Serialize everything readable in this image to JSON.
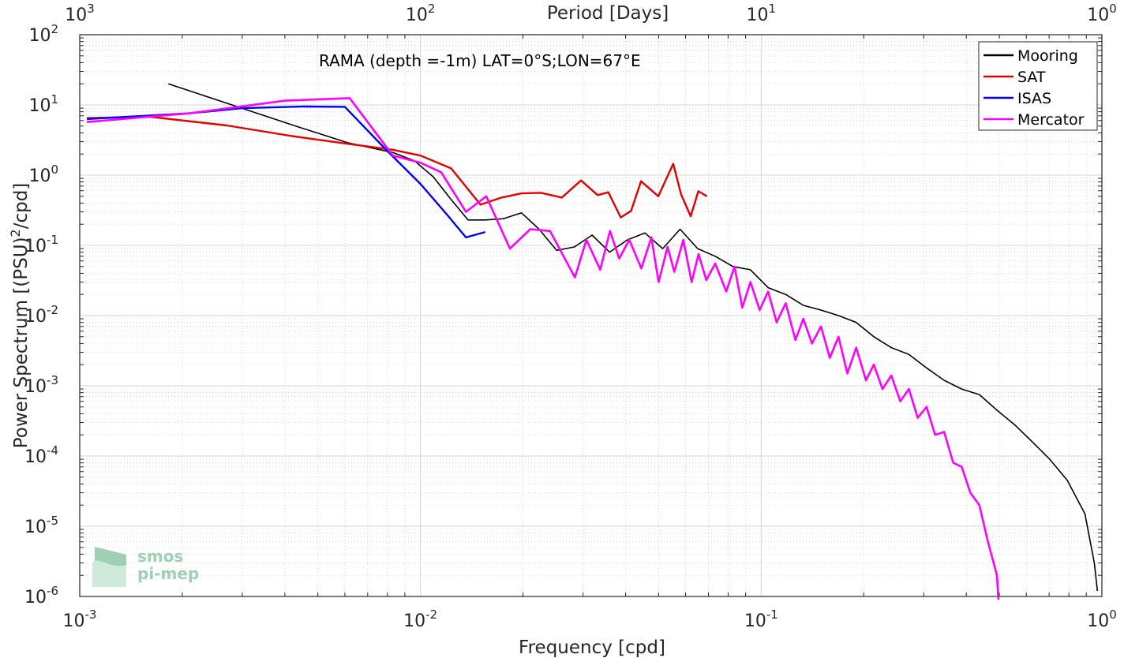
{
  "chart_data": {
    "type": "line",
    "title": "",
    "annotation": "RAMA (depth =-1m) LAT=0°S;LON=67°E",
    "xlabel": "Frequency [cpd]",
    "ylabel": "Power Spectrum [(PSU)",
    "ylabel_sup": "2",
    "ylabel_tail": "/cpd]",
    "top_xlabel": "Period [Days]",
    "x_scale": "log",
    "y_scale": "log",
    "xlim": [
      0.001,
      1
    ],
    "ylim": [
      1e-06,
      100
    ],
    "grid": true,
    "minor_grid": true,
    "legend_position": "top-right",
    "x_ticks": [
      {
        "base": "10",
        "exp": "-3",
        "value": 0.001
      },
      {
        "base": "10",
        "exp": "-2",
        "value": 0.01
      },
      {
        "base": "10",
        "exp": "-1",
        "value": 0.1
      },
      {
        "base": "10",
        "exp": "0",
        "value": 1
      }
    ],
    "top_ticks": [
      {
        "base": "10",
        "exp": "3",
        "value": 1000
      },
      {
        "base": "10",
        "exp": "2",
        "value": 100
      },
      {
        "base": "10",
        "exp": "1",
        "value": 10
      },
      {
        "base": "10",
        "exp": "0",
        "value": 1
      }
    ],
    "y_ticks": [
      {
        "base": "10",
        "exp": "2",
        "value": 100
      },
      {
        "base": "10",
        "exp": "1",
        "value": 10
      },
      {
        "base": "10",
        "exp": "0",
        "value": 1
      },
      {
        "base": "10",
        "exp": "-1",
        "value": 0.1
      },
      {
        "base": "10",
        "exp": "-2",
        "value": 0.01
      },
      {
        "base": "10",
        "exp": "-3",
        "value": 0.001
      },
      {
        "base": "10",
        "exp": "-4",
        "value": 0.0001
      },
      {
        "base": "10",
        "exp": "-5",
        "value": 1e-05
      },
      {
        "base": "10",
        "exp": "-6",
        "value": 1e-06
      }
    ],
    "series": [
      {
        "name": "Mooring",
        "color": "#000000",
        "x": [
          0.00182,
          0.0042,
          0.0061,
          0.0083,
          0.0096,
          0.0109,
          0.0123,
          0.0138,
          0.0155,
          0.0175,
          0.0198,
          0.0223,
          0.0251,
          0.0283,
          0.0319,
          0.0359,
          0.0405,
          0.0456,
          0.0514,
          0.0578,
          0.0651,
          0.0733,
          0.0826,
          0.093,
          0.1048,
          0.118,
          0.1329,
          0.1497,
          0.1686,
          0.19,
          0.214,
          0.241,
          0.2714,
          0.3057,
          0.3443,
          0.3878,
          0.4368,
          0.492,
          0.5541,
          0.6241,
          0.7029,
          0.7917,
          0.8917,
          0.95,
          0.97
        ],
        "y": [
          20,
          5.2,
          2.9,
          2.1,
          1.6,
          0.95,
          0.45,
          0.23,
          0.23,
          0.24,
          0.29,
          0.17,
          0.085,
          0.095,
          0.14,
          0.08,
          0.12,
          0.15,
          0.09,
          0.17,
          0.09,
          0.07,
          0.05,
          0.045,
          0.025,
          0.02,
          0.014,
          0.012,
          0.01,
          0.008,
          0.005,
          0.0035,
          0.0028,
          0.0018,
          0.0012,
          0.0009,
          0.00075,
          0.00045,
          0.00028,
          0.00016,
          9e-05,
          4.5e-05,
          1.5e-05,
          3e-06,
          1.2e-06
        ]
      },
      {
        "name": "SAT",
        "color": "#e00000",
        "x": [
          0.00105,
          0.0016,
          0.0027,
          0.0042,
          0.0061,
          0.0083,
          0.01,
          0.0123,
          0.015,
          0.0173,
          0.0198,
          0.0226,
          0.026,
          0.0296,
          0.0331,
          0.0356,
          0.0387,
          0.0415,
          0.0444,
          0.0499,
          0.0552,
          0.0582,
          0.0621,
          0.0654,
          0.0693
        ],
        "y": [
          6.5,
          6.8,
          5.1,
          3.6,
          2.8,
          2.3,
          1.9,
          1.25,
          0.38,
          0.48,
          0.55,
          0.56,
          0.48,
          0.84,
          0.52,
          0.57,
          0.25,
          0.31,
          0.82,
          0.5,
          1.45,
          0.53,
          0.26,
          0.59,
          0.5
        ]
      },
      {
        "name": "ISAS",
        "color": "#0000ff",
        "x": [
          0.00105,
          0.0021,
          0.003,
          0.0045,
          0.006,
          0.008,
          0.01,
          0.012,
          0.0136,
          0.0155
        ],
        "y": [
          6.3,
          7.6,
          9.0,
          9.5,
          9.4,
          2.2,
          0.75,
          0.27,
          0.13,
          0.155
        ]
      },
      {
        "name": "Mercator",
        "color": "#ff00ff",
        "x": [
          0.00105,
          0.0021,
          0.004,
          0.0062,
          0.0083,
          0.01,
          0.0115,
          0.0136,
          0.0156,
          0.0183,
          0.021,
          0.024,
          0.0263,
          0.0284,
          0.0307,
          0.0337,
          0.036,
          0.0383,
          0.041,
          0.0445,
          0.0476,
          0.05,
          0.0531,
          0.0556,
          0.0591,
          0.0625,
          0.0655,
          0.069,
          0.0733,
          0.079,
          0.0835,
          0.088,
          0.093,
          0.099,
          0.1048,
          0.111,
          0.118,
          0.126,
          0.1329,
          0.141,
          0.1497,
          0.159,
          0.1686,
          0.179,
          0.19,
          0.203,
          0.214,
          0.227,
          0.241,
          0.256,
          0.2714,
          0.288,
          0.3057,
          0.324,
          0.3443,
          0.366,
          0.3878,
          0.411,
          0.4368,
          0.463,
          0.492,
          0.497
        ],
        "y": [
          5.7,
          7.6,
          11.5,
          12.5,
          1.9,
          1.5,
          1.1,
          0.3,
          0.5,
          0.09,
          0.17,
          0.16,
          0.07,
          0.035,
          0.12,
          0.045,
          0.16,
          0.065,
          0.12,
          0.047,
          0.13,
          0.03,
          0.095,
          0.042,
          0.12,
          0.03,
          0.075,
          0.032,
          0.055,
          0.022,
          0.05,
          0.013,
          0.03,
          0.012,
          0.022,
          0.008,
          0.015,
          0.0045,
          0.009,
          0.004,
          0.007,
          0.0025,
          0.005,
          0.0015,
          0.0035,
          0.0012,
          0.002,
          0.0009,
          0.0014,
          0.0006,
          0.0009,
          0.00035,
          0.0005,
          0.0002,
          0.00022,
          8e-05,
          7e-05,
          3e-05,
          2e-05,
          6e-06,
          2e-06,
          9e-07
        ]
      }
    ]
  },
  "logo": {
    "line1": "smos",
    "line2": "pi-mep"
  }
}
